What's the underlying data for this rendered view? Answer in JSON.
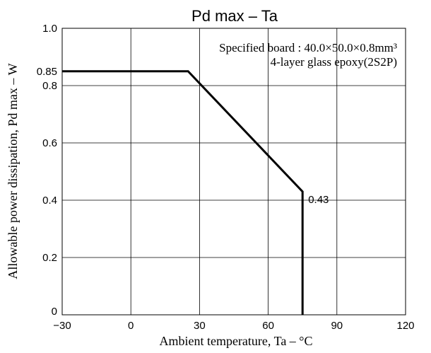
{
  "chart_data": {
    "type": "line",
    "title": "Pd max  –  Ta",
    "xlabel": "Ambient temperature, Ta  –  °C",
    "ylabel": "Allowable power dissipation, Pd max – W",
    "xlim": [
      -30,
      120
    ],
    "ylim": [
      0,
      1.0
    ],
    "x_ticks": [
      -30,
      0,
      30,
      60,
      90,
      120
    ],
    "x_tick_labels": [
      "−30",
      "0",
      "30",
      "60",
      "90",
      "120"
    ],
    "y_ticks": [
      0,
      0.2,
      0.4,
      0.6,
      0.8,
      1.0
    ],
    "y_tick_labels": [
      "0",
      "0.2",
      "0.4",
      "0.6",
      "0.8",
      "1.0"
    ],
    "extra_y_label": {
      "value": 0.85,
      "text": "0.85"
    },
    "grid": true,
    "series": [
      {
        "x": [
          -30,
          25,
          75,
          75
        ],
        "y": [
          0.85,
          0.85,
          0.43,
          0
        ],
        "color": "#000000"
      }
    ],
    "annotations": [
      {
        "x": 75,
        "y": 0.43,
        "text": "0.43"
      }
    ],
    "note_lines": [
      "Specified board : 40.0×50.0×0.8mm³",
      "4-layer glass epoxy(2S2P)"
    ]
  }
}
